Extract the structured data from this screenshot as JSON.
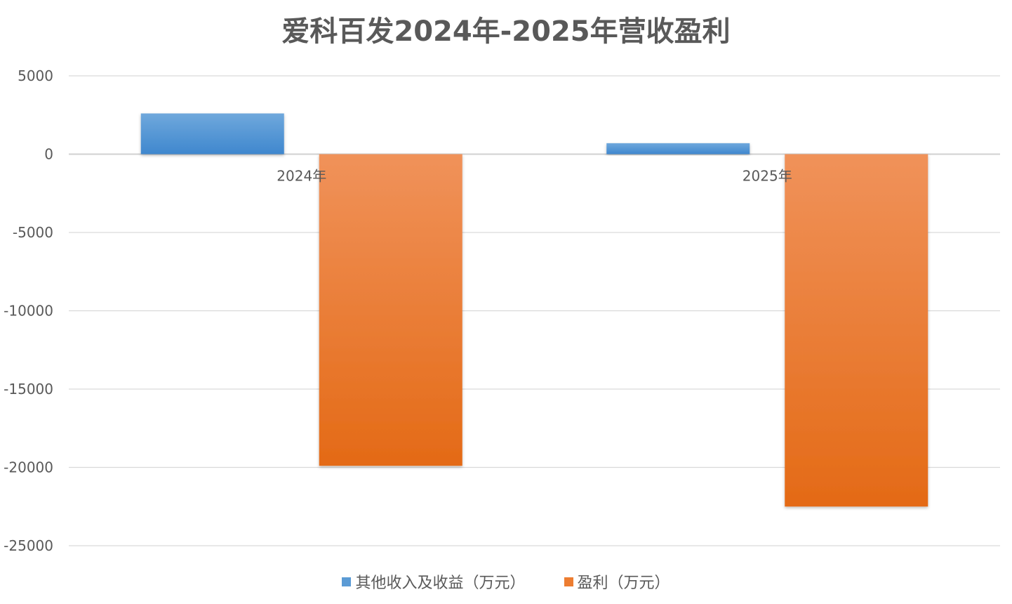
{
  "chart_data": {
    "type": "bar",
    "title": "爱科百发2024年-2025年营收盈利",
    "categories": [
      "2024年",
      "2025年"
    ],
    "series": [
      {
        "name": "其他收入及收益（万元）",
        "values": [
          2600,
          700
        ],
        "color": "#5B9BD5"
      },
      {
        "name": "盈利（万元）",
        "values": [
          -19900,
          -22500
        ],
        "color": "#ED7D31"
      }
    ],
    "ylim": [
      -25000,
      5000
    ],
    "yticks": [
      5000,
      0,
      -5000,
      -10000,
      -15000,
      -20000,
      -25000
    ],
    "grid": true,
    "legend": "bottom"
  }
}
